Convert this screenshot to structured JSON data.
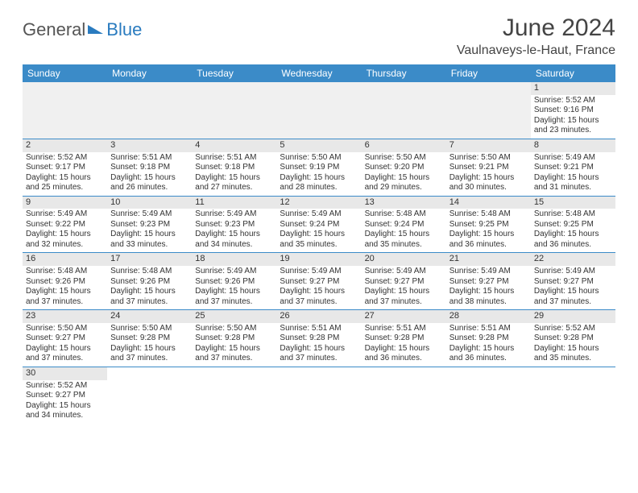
{
  "logo": {
    "text_a": "General",
    "text_b": "Blue"
  },
  "title": "June 2024",
  "location": "Vaulnaveys-le-Haut, France",
  "colors": {
    "header_bg": "#3b8bc8",
    "header_fg": "#ffffff",
    "row_divider": "#3b8bc8",
    "daynum_bg": "#e8e8e8",
    "empty_bg": "#f0f0f0",
    "logo_accent": "#2a7bbf"
  },
  "day_headers": [
    "Sunday",
    "Monday",
    "Tuesday",
    "Wednesday",
    "Thursday",
    "Friday",
    "Saturday"
  ],
  "weeks": [
    [
      null,
      null,
      null,
      null,
      null,
      null,
      {
        "n": "1",
        "sunrise": "5:52 AM",
        "sunset": "9:16 PM",
        "daylight": "15 hours and 23 minutes."
      }
    ],
    [
      {
        "n": "2",
        "sunrise": "5:52 AM",
        "sunset": "9:17 PM",
        "daylight": "15 hours and 25 minutes."
      },
      {
        "n": "3",
        "sunrise": "5:51 AM",
        "sunset": "9:18 PM",
        "daylight": "15 hours and 26 minutes."
      },
      {
        "n": "4",
        "sunrise": "5:51 AM",
        "sunset": "9:18 PM",
        "daylight": "15 hours and 27 minutes."
      },
      {
        "n": "5",
        "sunrise": "5:50 AM",
        "sunset": "9:19 PM",
        "daylight": "15 hours and 28 minutes."
      },
      {
        "n": "6",
        "sunrise": "5:50 AM",
        "sunset": "9:20 PM",
        "daylight": "15 hours and 29 minutes."
      },
      {
        "n": "7",
        "sunrise": "5:50 AM",
        "sunset": "9:21 PM",
        "daylight": "15 hours and 30 minutes."
      },
      {
        "n": "8",
        "sunrise": "5:49 AM",
        "sunset": "9:21 PM",
        "daylight": "15 hours and 31 minutes."
      }
    ],
    [
      {
        "n": "9",
        "sunrise": "5:49 AM",
        "sunset": "9:22 PM",
        "daylight": "15 hours and 32 minutes."
      },
      {
        "n": "10",
        "sunrise": "5:49 AM",
        "sunset": "9:23 PM",
        "daylight": "15 hours and 33 minutes."
      },
      {
        "n": "11",
        "sunrise": "5:49 AM",
        "sunset": "9:23 PM",
        "daylight": "15 hours and 34 minutes."
      },
      {
        "n": "12",
        "sunrise": "5:49 AM",
        "sunset": "9:24 PM",
        "daylight": "15 hours and 35 minutes."
      },
      {
        "n": "13",
        "sunrise": "5:48 AM",
        "sunset": "9:24 PM",
        "daylight": "15 hours and 35 minutes."
      },
      {
        "n": "14",
        "sunrise": "5:48 AM",
        "sunset": "9:25 PM",
        "daylight": "15 hours and 36 minutes."
      },
      {
        "n": "15",
        "sunrise": "5:48 AM",
        "sunset": "9:25 PM",
        "daylight": "15 hours and 36 minutes."
      }
    ],
    [
      {
        "n": "16",
        "sunrise": "5:48 AM",
        "sunset": "9:26 PM",
        "daylight": "15 hours and 37 minutes."
      },
      {
        "n": "17",
        "sunrise": "5:48 AM",
        "sunset": "9:26 PM",
        "daylight": "15 hours and 37 minutes."
      },
      {
        "n": "18",
        "sunrise": "5:49 AM",
        "sunset": "9:26 PM",
        "daylight": "15 hours and 37 minutes."
      },
      {
        "n": "19",
        "sunrise": "5:49 AM",
        "sunset": "9:27 PM",
        "daylight": "15 hours and 37 minutes."
      },
      {
        "n": "20",
        "sunrise": "5:49 AM",
        "sunset": "9:27 PM",
        "daylight": "15 hours and 37 minutes."
      },
      {
        "n": "21",
        "sunrise": "5:49 AM",
        "sunset": "9:27 PM",
        "daylight": "15 hours and 38 minutes."
      },
      {
        "n": "22",
        "sunrise": "5:49 AM",
        "sunset": "9:27 PM",
        "daylight": "15 hours and 37 minutes."
      }
    ],
    [
      {
        "n": "23",
        "sunrise": "5:50 AM",
        "sunset": "9:27 PM",
        "daylight": "15 hours and 37 minutes."
      },
      {
        "n": "24",
        "sunrise": "5:50 AM",
        "sunset": "9:28 PM",
        "daylight": "15 hours and 37 minutes."
      },
      {
        "n": "25",
        "sunrise": "5:50 AM",
        "sunset": "9:28 PM",
        "daylight": "15 hours and 37 minutes."
      },
      {
        "n": "26",
        "sunrise": "5:51 AM",
        "sunset": "9:28 PM",
        "daylight": "15 hours and 37 minutes."
      },
      {
        "n": "27",
        "sunrise": "5:51 AM",
        "sunset": "9:28 PM",
        "daylight": "15 hours and 36 minutes."
      },
      {
        "n": "28",
        "sunrise": "5:51 AM",
        "sunset": "9:28 PM",
        "daylight": "15 hours and 36 minutes."
      },
      {
        "n": "29",
        "sunrise": "5:52 AM",
        "sunset": "9:28 PM",
        "daylight": "15 hours and 35 minutes."
      }
    ],
    [
      {
        "n": "30",
        "sunrise": "5:52 AM",
        "sunset": "9:27 PM",
        "daylight": "15 hours and 34 minutes."
      },
      null,
      null,
      null,
      null,
      null,
      null
    ]
  ],
  "labels": {
    "sunrise": "Sunrise:",
    "sunset": "Sunset:",
    "daylight": "Daylight:"
  }
}
